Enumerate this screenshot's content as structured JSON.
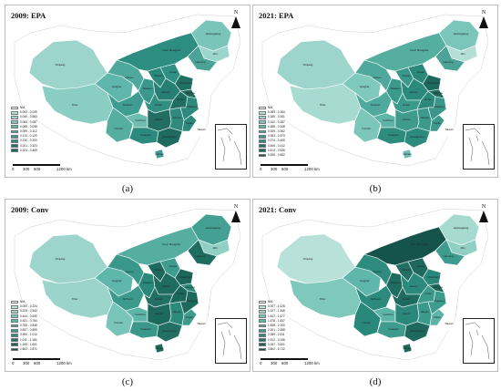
{
  "panels": [
    {
      "key": "a",
      "title": "2009: EPA",
      "caption": "(a)",
      "legend": [
        "N/A",
        "0.000 - 0.039",
        "0.040 - 0.063",
        "0.064 - 0.087",
        "0.088 - 0.098",
        "0.099 - 0.112",
        "0.113 - 0.129",
        "0.130 - 0.200",
        "0.201 - 0.323",
        "0.324 - 0.469"
      ],
      "fills": {
        "XJ": "#9dd5cc",
        "TB": "#8acdc2",
        "QH": "#5fb6aa",
        "GS": "#4ea99c",
        "NM": "#2c8d80",
        "HLJ": "#79c5b9",
        "JL": "#9bd6cd",
        "LN": "#4aa396",
        "YN": "#56aea1",
        "SC": "#3e9d90",
        "GZ": "#6fbdb1",
        "GX": "#2b8a7d",
        "SN": "#3a998c",
        "SX": "#2a887b",
        "HB": "#2f9184",
        "HN": "#267f72",
        "HUB": "#338f82",
        "HUN": "#216f63",
        "JX": "#2e8b7e",
        "AH": "#1f6e61",
        "JS": "#1d6a5e",
        "ZJ": "#2c8a7c",
        "FJ": "#2d897c",
        "GD": "#1e6b5f",
        "SD": "#217064",
        "HAI": "#3e9c8f",
        "TW": "#ffffff"
      }
    },
    {
      "key": "b",
      "title": "2021: EPA",
      "caption": "(b)",
      "legend": [
        "N/A",
        "0.069 - 0.184",
        "0.185 - 0.241",
        "0.242 - 0.287",
        "0.288 - 0.348",
        "0.349 - 0.362",
        "0.363 - 0.373",
        "0.374 - 0.405",
        "0.406 - 0.412",
        "0.413 - 0.535",
        "0.536 - 0.552"
      ],
      "fills": {
        "XJ": "#9dd5cc",
        "TB": "#a7dad1",
        "QH": "#7fc8bc",
        "GS": "#4ea99c",
        "NM": "#56aea1",
        "HLJ": "#7bc6ba",
        "JL": "#b3dfd7",
        "LN": "#4aa396",
        "YN": "#7cc6ba",
        "SC": "#4fa99c",
        "GZ": "#5fb4a8",
        "GX": "#2e8c7f",
        "SN": "#3c9a8d",
        "SX": "#3a988b",
        "HB": "#2b897c",
        "HN": "#2c8a7d",
        "HUB": "#3c9a8d",
        "HUN": "#3e9b8e",
        "JX": "#3c9a8d",
        "AH": "#2c897c",
        "JS": "#1f6c60",
        "ZJ": "#3a978a",
        "FJ": "#3d9a8d",
        "GD": "#2d8b7e",
        "SD": "#1d695d",
        "HAI": "#6fbdb1",
        "TW": "#ffffff"
      }
    },
    {
      "key": "c",
      "title": "2009: Conv",
      "caption": "(c)",
      "legend": [
        "N/A",
        "0.000 - 0.224",
        "0.225 - 0.443",
        "0.444 - 0.530",
        "0.531 - 0.754",
        "0.755 - 0.836",
        "0.837 - 0.899",
        "0.900 - 1.010",
        "1.011 - 1.164",
        "1.165 - 1.601",
        "1.602 - 2.871"
      ],
      "fills": {
        "XJ": "#9dd5cc",
        "TB": "#9bd4cb",
        "QH": "#5fb6aa",
        "GS": "#3a988b",
        "NM": "#56aea1",
        "HLJ": "#44a093",
        "JL": "#8fcfc4",
        "LN": "#1f6d61",
        "YN": "#79c5b9",
        "SC": "#3c9a8d",
        "GZ": "#5db4a8",
        "GX": "#3a988b",
        "SN": "#2a887b",
        "SX": "#1d695d",
        "HB": "#3e9c8f",
        "HN": "#1e6b5f",
        "HUB": "#226f63",
        "HUN": "#1d695d",
        "JX": "#2c8a7d",
        "AH": "#1c675b",
        "JS": "#2a887b",
        "ZJ": "#1d695d",
        "FJ": "#3e9c8f",
        "GD": "#226f63",
        "SD": "#1c675b",
        "HAI": "#1d695d",
        "TW": "#ffffff"
      }
    },
    {
      "key": "d",
      "title": "2021: Conv",
      "caption": "(d)",
      "legend": [
        "N/A",
        "0.007 - 1.026",
        "1.027 - 1.446",
        "1.447 - 1.677",
        "1.678 - 1.837",
        "1.838 - 2.200",
        "2.201 - 2.358",
        "2.359 - 2.511",
        "2.512 - 3.156",
        "3.157 - 3.601",
        "3.602 - 5.712"
      ],
      "fills": {
        "XJ": "#b8e1d9",
        "TB": "#7fc8bc",
        "QH": "#5fb6aa",
        "GS": "#2e8b7e",
        "NM": "#15544a",
        "HLJ": "#a6d9d0",
        "JL": "#8fcfc4",
        "LN": "#3e9c8f",
        "YN": "#2a887b",
        "SC": "#2c8a7d",
        "GZ": "#5db4a8",
        "GX": "#3e9c8f",
        "SN": "#1f6c60",
        "SX": "#226f63",
        "HB": "#1d695d",
        "HN": "#2c8a7d",
        "HUB": "#1e6b5f",
        "HUN": "#2a887b",
        "JX": "#3c9a8d",
        "AH": "#3c9a8d",
        "JS": "#1d695d",
        "ZJ": "#3e9c8f",
        "FJ": "#5db4a8",
        "GD": "#1d695d",
        "SD": "#2a887b",
        "HAI": "#1d695d",
        "TW": "#ffffff"
      }
    }
  ],
  "scale": {
    "labels": [
      "0",
      "300",
      "600",
      "1200 km"
    ]
  },
  "north_label": "N",
  "region_labels": {
    "XJ": "Xinjiang",
    "TB": "Tibet",
    "QH": "Qinghai",
    "GS": "Gansu",
    "NM": "Inner Mongolia",
    "HLJ": "Heilongjiang",
    "JL": "Jilin",
    "LN": "Liaoning",
    "YN": "Yunnan",
    "SC": "Sichuan",
    "GZ": "Guizhou",
    "GX": "Guangxi",
    "SN": "Shaanxi",
    "SX": "Shanxi",
    "HB": "Hebei",
    "HN": "Henan",
    "HUB": "Hubei",
    "HUN": "Hunan",
    "JX": "Jiangxi",
    "AH": "Anhui",
    "JS": "Jiangsu",
    "ZJ": "Zhejiang",
    "FJ": "Fujian",
    "GD": "Guangdong",
    "SD": "Shandong",
    "HAI": "Hainan",
    "TW": "Taiwan"
  }
}
